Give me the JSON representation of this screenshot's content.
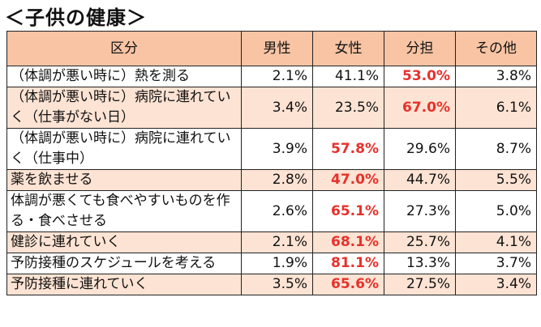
{
  "title": "＜子供の健康＞",
  "table": {
    "header": [
      "区分",
      "男性",
      "女性",
      "分担",
      "その他"
    ],
    "rows": [
      [
        "（体調が悪い時に）熱を測る",
        "2.1%",
        "41.1%",
        "53.0%",
        "3.8%"
      ],
      [
        "（体調が悪い時に）病院に連れていく（仕事がない日）",
        "3.4%",
        "23.5%",
        "67.0%",
        "6.1%"
      ],
      [
        "（体調が悪い時に）病院に連れていく（仕事中）",
        "3.9%",
        "57.8%",
        "29.6%",
        "8.7%"
      ],
      [
        "薬を飲ませる",
        "2.8%",
        "47.0%",
        "44.7%",
        "5.5%"
      ],
      [
        "体調が悪くても食べやすいものを作る・食べさせる",
        "2.6%",
        "65.1%",
        "27.3%",
        "5.0%"
      ],
      [
        "健診に連れていく",
        "2.1%",
        "68.1%",
        "25.7%",
        "4.1%"
      ],
      [
        "予防接種のスケジュールを考える",
        "1.9%",
        "81.1%",
        "13.3%",
        "3.7%"
      ],
      [
        "予防接種に連れていく",
        "3.5%",
        "65.6%",
        "27.5%",
        "3.4%"
      ]
    ],
    "header_color": "#f8c4a4",
    "stripe_color": "#fde3d3",
    "highlight_color": "#e8302a"
  }
}
